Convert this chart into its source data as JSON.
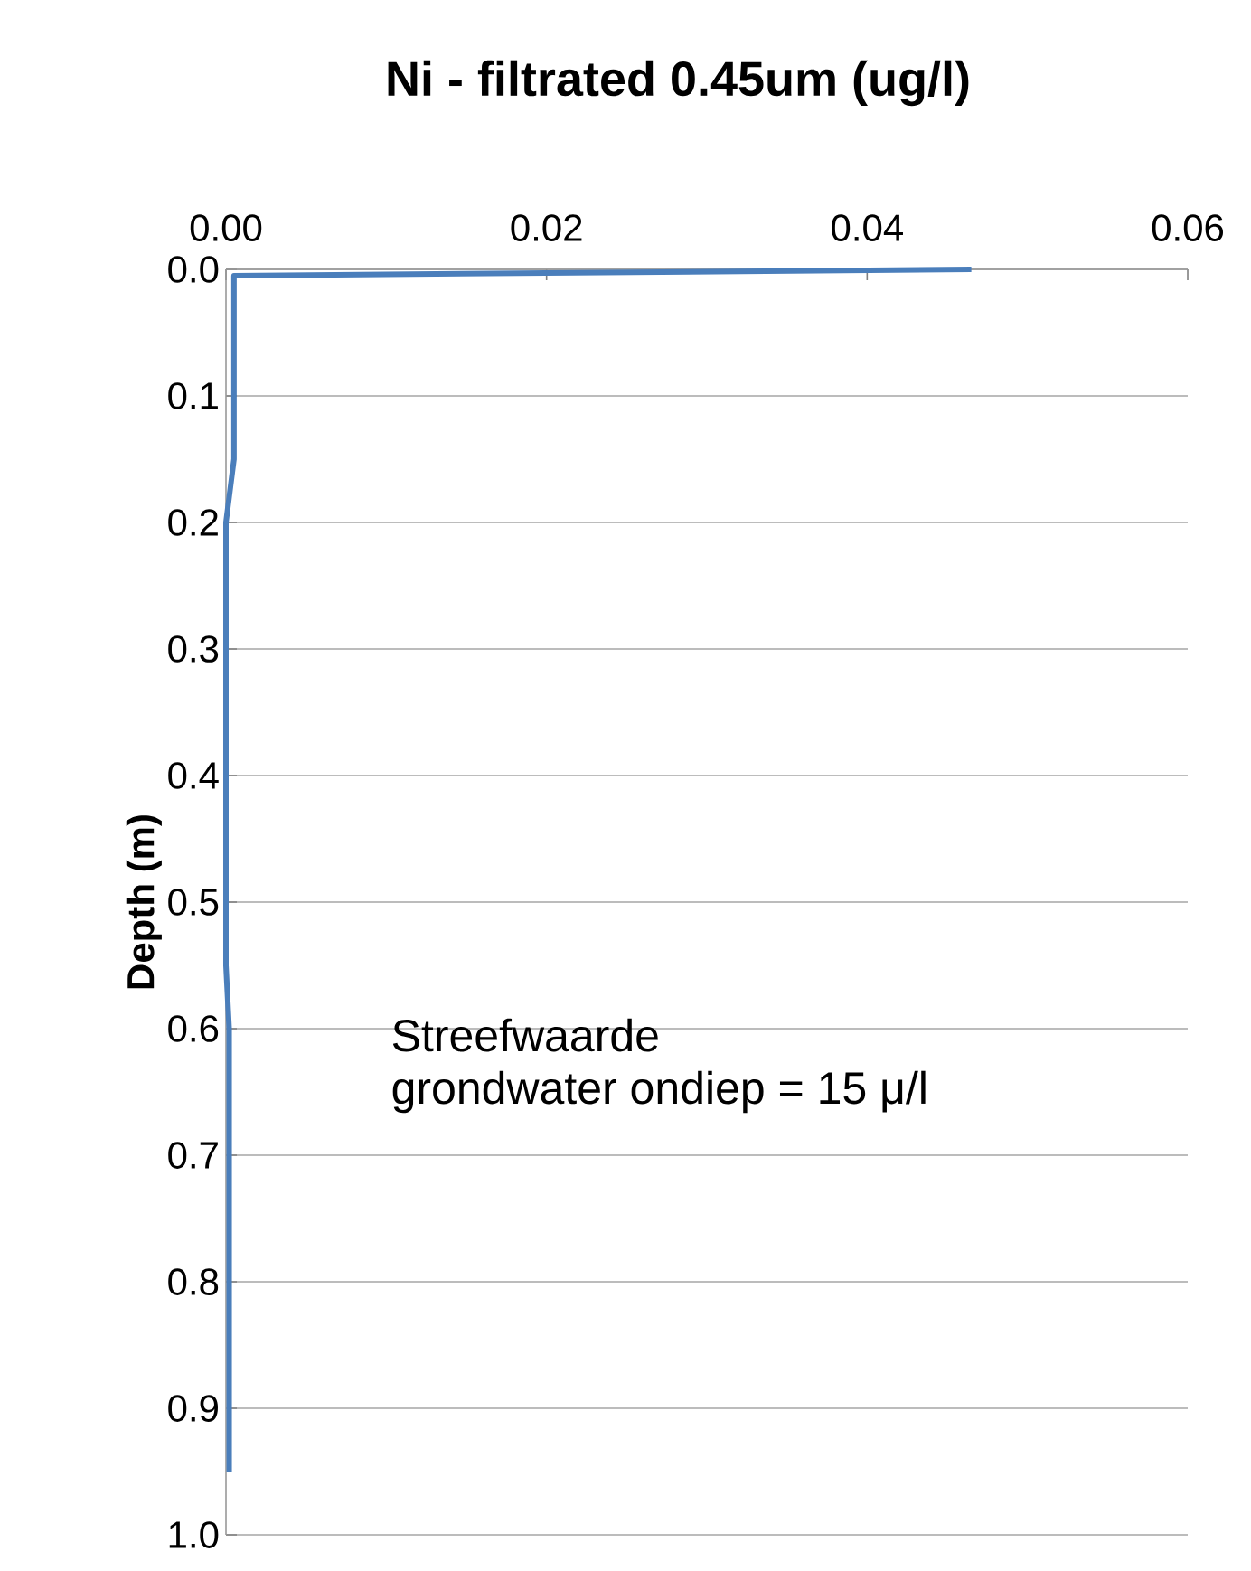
{
  "chart_data": {
    "type": "line",
    "title": "Ni - filtrated 0.45um (ug/l)",
    "ylabel": "Depth (m)",
    "x": [
      0.0465,
      0.0005,
      0.0005,
      0.0,
      0.0,
      0.0002,
      0.0002
    ],
    "values": [
      0.0,
      0.005,
      0.15,
      0.2,
      0.55,
      0.6,
      0.95
    ],
    "color": "#4a7ebb",
    "xlim": [
      0,
      0.06
    ],
    "xticks": [
      {
        "value": 0,
        "label": "0.00"
      },
      {
        "value": 0.02,
        "label": "0.02"
      },
      {
        "value": 0.04,
        "label": "0.04"
      },
      {
        "value": 0.06,
        "label": "0.06"
      }
    ],
    "ylim": [
      1.0,
      0.0
    ],
    "yticks": [
      {
        "value": 0,
        "label": "0.0"
      },
      0.1,
      0.2,
      0.3,
      0.4,
      0.5,
      0.6,
      0.7,
      0.8,
      0.9,
      {
        "value": 1,
        "label": "1.0"
      }
    ],
    "grid": "y",
    "annotations": [
      "Streefwaarde",
      "grondwater ondiep = 15 μ/l"
    ]
  }
}
